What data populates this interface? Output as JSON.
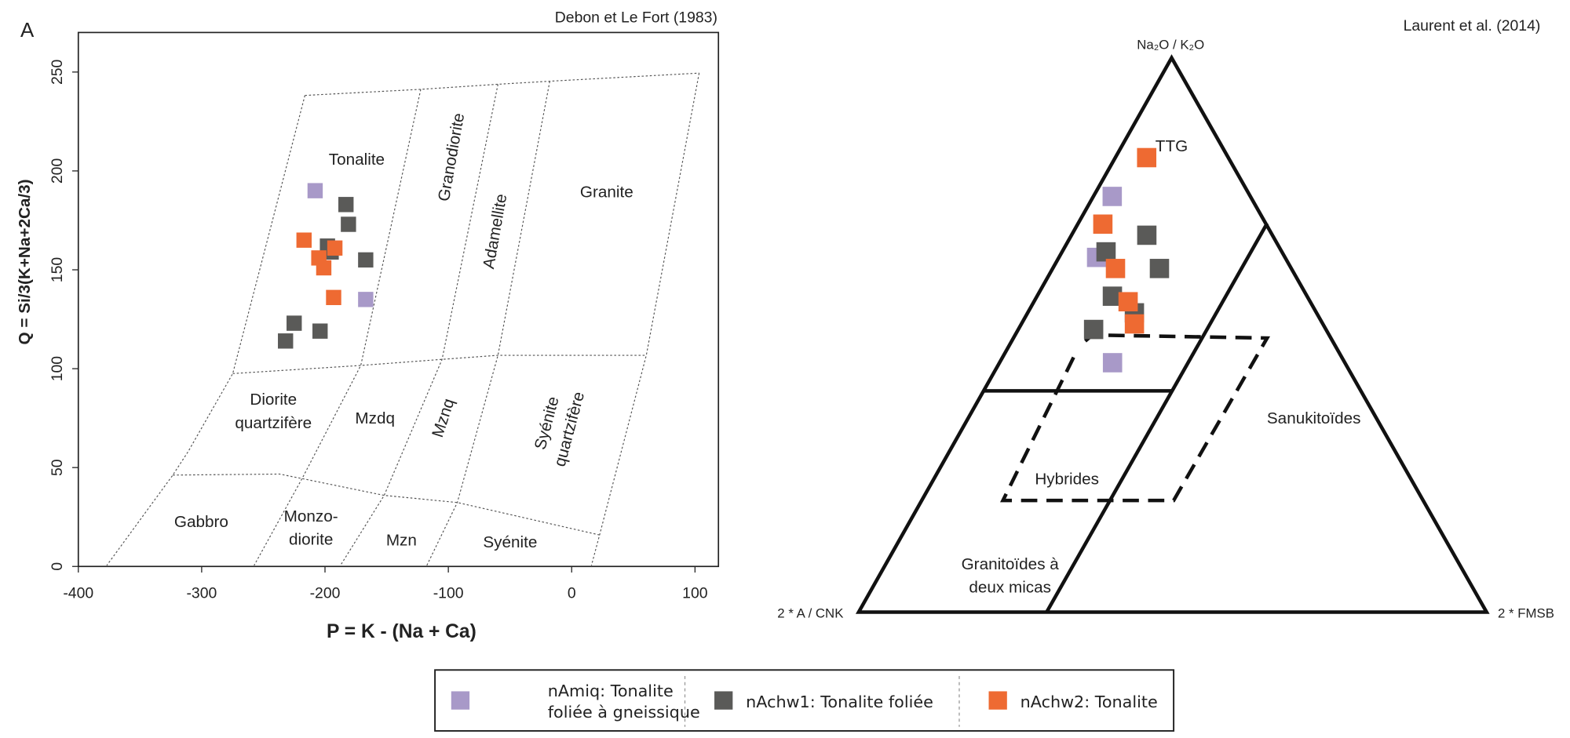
{
  "chart_data": [
    {
      "type": "scatter",
      "panel_label": "A",
      "source": "Debon et Le Fort (1983)",
      "x_label": "P = K - (Na + Ca)",
      "y_label": "Q = Si/3(K+Na+2Ca/3)",
      "xlim": [
        -400,
        119
      ],
      "ylim": [
        0,
        270
      ],
      "xticks": [
        -400,
        -300,
        -200,
        -100,
        0,
        100
      ],
      "yticks": [
        0,
        50,
        100,
        150,
        200,
        250
      ],
      "field_labels": [
        {
          "lines": [
            "Tonalite"
          ]
        },
        {
          "lines": [
            "Granodiorite"
          ]
        },
        {
          "lines": [
            "Adamellite"
          ]
        },
        {
          "lines": [
            "Granite"
          ]
        },
        {
          "lines": [
            "Diorite",
            "quartzifère"
          ]
        },
        {
          "lines": [
            "Mzdq"
          ]
        },
        {
          "lines": [
            "Mznq"
          ]
        },
        {
          "lines": [
            "Syénite",
            "quartzifère"
          ]
        },
        {
          "lines": [
            "Gabbro"
          ]
        },
        {
          "lines": [
            "Monzo-",
            "diorite"
          ]
        },
        {
          "lines": [
            "Mzn"
          ]
        },
        {
          "lines": [
            "Syénite"
          ]
        }
      ],
      "series": [
        {
          "name": "nAmiq: Tonalite foliée à gneissique",
          "color": "#a899c8",
          "x": [
            -208,
            -167
          ],
          "y": [
            190,
            135
          ]
        },
        {
          "name": "nAchw1: Tonalite foliée",
          "color": "#5a5a58",
          "x": [
            -183,
            -181,
            -198,
            -195,
            -167,
            -225,
            -204,
            -232
          ],
          "y": [
            183,
            173,
            162,
            159,
            155,
            123,
            119,
            114
          ]
        },
        {
          "name": "nAchw2: Tonalite",
          "color": "#ee6a32",
          "x": [
            -217,
            -192,
            -205,
            -201,
            -193
          ],
          "y": [
            165,
            161,
            156,
            151,
            136
          ]
        }
      ]
    },
    {
      "type": "ternary",
      "source": "Laurent et al. (2014)",
      "top_label": "Na₂O / K₂O",
      "left_label": "2 * A / CNK",
      "right_label": "2 * FMSB",
      "field_labels": [
        {
          "lines": [
            "TTG"
          ]
        },
        {
          "lines": [
            "Sanukitoïdes"
          ]
        },
        {
          "lines": [
            "Hybrides"
          ]
        },
        {
          "lines": [
            "Granitoïdes à",
            "deux micas"
          ]
        }
      ],
      "series": [
        {
          "color": "#a899c8",
          "top": [
            75,
            64,
            45
          ],
          "left": [
            22,
            30,
            37
          ],
          "right": [
            3,
            6,
            18
          ]
        },
        {
          "color": "#5a5a58",
          "top": [
            65,
            68,
            62,
            57,
            54,
            51
          ],
          "left": [
            28,
            20,
            21,
            31,
            29,
            37
          ],
          "right": [
            7,
            12,
            17,
            12,
            17,
            12
          ]
        },
        {
          "color": "#ee6a32",
          "top": [
            82,
            70,
            62,
            56,
            52
          ],
          "left": [
            13,
            26,
            28,
            29,
            30
          ],
          "right": [
            5,
            4,
            10,
            15,
            18
          ]
        }
      ]
    }
  ]
}
